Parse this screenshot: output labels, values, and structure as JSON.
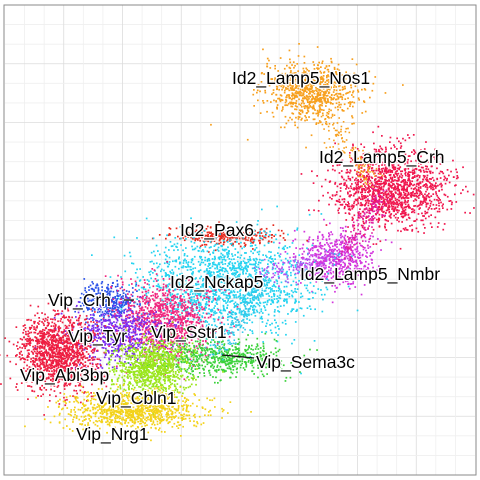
{
  "chart_data": {
    "type": "scatter",
    "title": "",
    "xlabel": "",
    "ylabel": "",
    "grid": true,
    "axes_ticks_visible": false,
    "legend": "none (labels placed on clusters)",
    "colors": {
      "grid_major": "#dcdcdc",
      "grid_minor": "#efefef",
      "panel_border": "#8a8a8a",
      "label_text": "#000000"
    },
    "series": [
      {
        "name": "Id2_Lamp5_Nos1",
        "color": "#f7a01e",
        "center": [
          0.65,
          0.82
        ],
        "spread": [
          0.05,
          0.03
        ],
        "n": 800
      },
      {
        "name": "Id2_Lamp5_Crh",
        "color": "#f0174e",
        "center": [
          0.82,
          0.61
        ],
        "spread": [
          0.06,
          0.04
        ],
        "n": 1400
      },
      {
        "name": "Id2_Lamp5_Nmbr",
        "color": "#d335dc",
        "center": [
          0.7,
          0.46
        ],
        "spread": [
          0.04,
          0.03
        ],
        "n": 550
      },
      {
        "name": "Id2_Pax6",
        "color": "#e52b1e",
        "center": [
          0.47,
          0.51
        ],
        "spread": [
          0.05,
          0.01
        ],
        "n": 300
      },
      {
        "name": "Id2_Nckap5",
        "color": "#25d3f0",
        "center": [
          0.47,
          0.41
        ],
        "spread": [
          0.09,
          0.05
        ],
        "n": 1600
      },
      {
        "name": "Vip_Crh",
        "color": "#2a52e8",
        "center": [
          0.22,
          0.37
        ],
        "spread": [
          0.03,
          0.02
        ],
        "n": 300
      },
      {
        "name": "Vip_Sstr1",
        "color": "#f0267e",
        "center": [
          0.34,
          0.33
        ],
        "spread": [
          0.05,
          0.04
        ],
        "n": 1000
      },
      {
        "name": "Vip_Tyr",
        "color": "#7a2cf0",
        "center": [
          0.23,
          0.3
        ],
        "spread": [
          0.05,
          0.03
        ],
        "n": 600
      },
      {
        "name": "Vip_Sema3c",
        "color": "#3ad13a",
        "center": [
          0.45,
          0.25
        ],
        "spread": [
          0.07,
          0.02
        ],
        "n": 600
      },
      {
        "name": "Vip_Abi3bp",
        "color": "#ee1e42",
        "center": [
          0.11,
          0.26
        ],
        "spread": [
          0.04,
          0.04
        ],
        "n": 1300
      },
      {
        "name": "Vip_Cbln1",
        "color": "#9ae61c",
        "center": [
          0.31,
          0.23
        ],
        "spread": [
          0.04,
          0.03
        ],
        "n": 900
      },
      {
        "name": "Vip_Nrg1",
        "color": "#f3d21a",
        "center": [
          0.27,
          0.14
        ],
        "spread": [
          0.07,
          0.02
        ],
        "n": 1000
      }
    ]
  }
}
